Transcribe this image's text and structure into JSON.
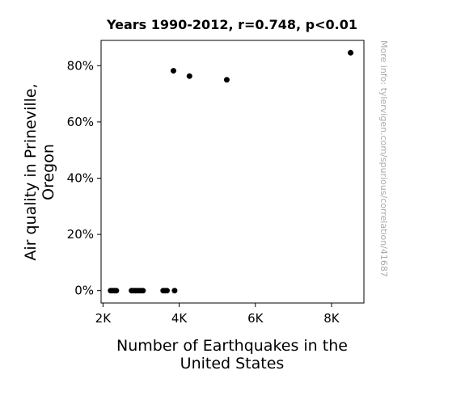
{
  "chart_data": {
    "type": "scatter",
    "title": "Years 1990-2012, r=0.748, p<0.01",
    "xlabel_lines": [
      "Number of Earthquakes in the",
      "United States"
    ],
    "ylabel_lines": [
      "Air quality in Prineville,",
      "Oregon"
    ],
    "watermark": "More info: tylervigen.com/spurious/correlation/41687",
    "xlim": [
      1950,
      8850
    ],
    "ylim": [
      -4.4,
      89
    ],
    "x_ticks": [
      2000,
      4000,
      6000,
      8000
    ],
    "x_tick_labels": [
      "2K",
      "4K",
      "6K",
      "8K"
    ],
    "y_ticks": [
      0,
      20,
      40,
      60,
      80
    ],
    "y_tick_labels": [
      "0%",
      "20%",
      "40%",
      "60%",
      "80%"
    ],
    "points": [
      {
        "x": 2200,
        "y": 0
      },
      {
        "x": 2250,
        "y": 0
      },
      {
        "x": 2300,
        "y": 0
      },
      {
        "x": 2350,
        "y": 0
      },
      {
        "x": 2750,
        "y": 0
      },
      {
        "x": 2800,
        "y": 0
      },
      {
        "x": 2850,
        "y": 0
      },
      {
        "x": 2900,
        "y": 0
      },
      {
        "x": 2950,
        "y": 0
      },
      {
        "x": 3000,
        "y": 0
      },
      {
        "x": 3050,
        "y": 0
      },
      {
        "x": 3580,
        "y": 0
      },
      {
        "x": 3630,
        "y": 0
      },
      {
        "x": 3680,
        "y": 0
      },
      {
        "x": 3880,
        "y": 0
      },
      {
        "x": 3850,
        "y": 78.2
      },
      {
        "x": 4270,
        "y": 76.3
      },
      {
        "x": 5250,
        "y": 75.0
      },
      {
        "x": 8500,
        "y": 84.6
      }
    ]
  }
}
